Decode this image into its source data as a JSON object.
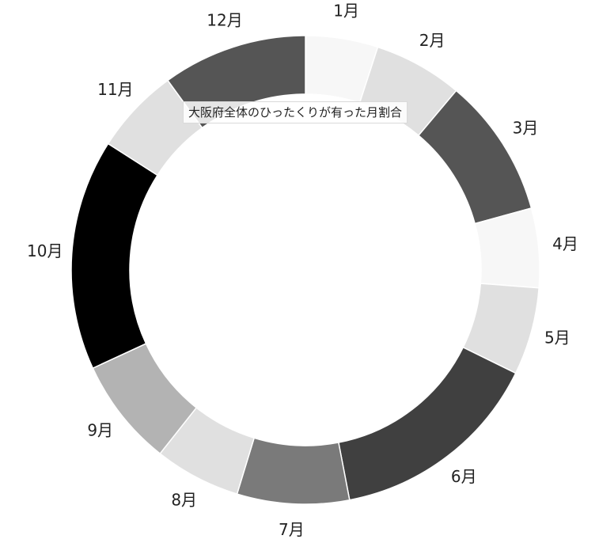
{
  "chart_data": {
    "type": "pie",
    "variant": "donut",
    "title": "大阪府全体のひったくりが有った月割合",
    "categories": [
      "1月",
      "2月",
      "3月",
      "4月",
      "5月",
      "6月",
      "7月",
      "8月",
      "9月",
      "10月",
      "11月",
      "12月"
    ],
    "values": [
      5.3,
      6.5,
      10.2,
      5.8,
      6.4,
      15.6,
      8.2,
      6.3,
      7.9,
      16.9,
      6.3,
      10.6
    ],
    "value_unit": "percent of total",
    "colors": [
      "#f7f7f7",
      "#e0e0e0",
      "#555555",
      "#f7f7f7",
      "#e0e0e0",
      "#404040",
      "#7a7a7a",
      "#e0e0e0",
      "#b3b3b3",
      "#000000",
      "#e0e0e0",
      "#555555"
    ],
    "start_angle": "12 o'clock",
    "direction": "clockwise",
    "legend": "none"
  }
}
